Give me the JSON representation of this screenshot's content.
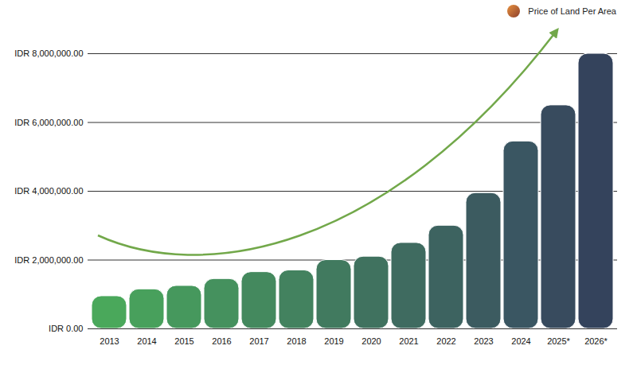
{
  "chart_data": {
    "type": "bar",
    "categories": [
      "2013",
      "2014",
      "2015",
      "2016",
      "2017",
      "2018",
      "2019",
      "2020",
      "2021",
      "2022",
      "2023",
      "2024",
      "2025*",
      "2026*"
    ],
    "series": [
      {
        "name": "Price of Land Per Area",
        "values": [
          950000,
          1150000,
          1250000,
          1450000,
          1650000,
          1700000,
          2000000,
          2100000,
          2500000,
          3000000,
          3950000,
          5450000,
          6500000,
          8000000
        ]
      }
    ],
    "colors": [
      "#4aa85b",
      "#48a05c",
      "#46985d",
      "#45915e",
      "#44895e",
      "#43825f",
      "#417a5f",
      "#40725f",
      "#3f6b60",
      "#3d6360",
      "#3c5b60",
      "#3a5662",
      "#384b5e",
      "#34435c"
    ],
    "ylim": [
      0,
      8000000
    ],
    "yticks": [
      {
        "value": 0,
        "label": "IDR 0.00"
      },
      {
        "value": 2000000,
        "label": "IDR 2,000,000.00"
      },
      {
        "value": 4000000,
        "label": "IDR 4,000,000.00"
      },
      {
        "value": 6000000,
        "label": "IDR 6,000,000.00"
      },
      {
        "value": 8000000,
        "label": "IDR 8,000,000.00"
      }
    ],
    "grid": true,
    "legend": "top-right"
  }
}
